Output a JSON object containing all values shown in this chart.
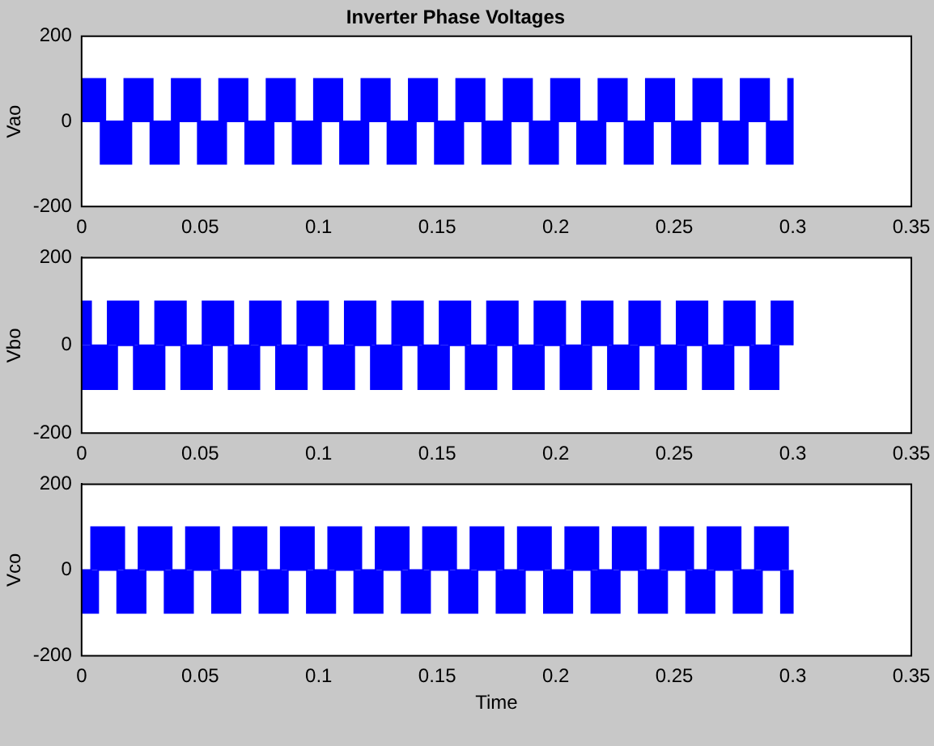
{
  "chart_data": [
    {
      "type": "area",
      "title": "Inverter Phase Voltages",
      "ylabel": "Vao",
      "xlim": [
        0,
        0.35
      ],
      "ylim": [
        -200,
        200
      ],
      "xticks": [
        0,
        0.05,
        0.1,
        0.15,
        0.2,
        0.25,
        0.3,
        0.35
      ],
      "yticks": [
        -200,
        0,
        200
      ],
      "series": [
        {
          "color": "#0000ff",
          "x": [
            0,
            0.01,
            0.01,
            0.018,
            0.018,
            0.03,
            0.03,
            0.038,
            0.038,
            0.05,
            0.05,
            0.058,
            0.058,
            0.07,
            0.07,
            0.078,
            0.078,
            0.09,
            0.09,
            0.098,
            0.098,
            0.11,
            0.11,
            0.118,
            0.118,
            0.13,
            0.13,
            0.138,
            0.138,
            0.15,
            0.15,
            0.158,
            0.158,
            0.17,
            0.17,
            0.178,
            0.178,
            0.19,
            0.19,
            0.198,
            0.198,
            0.21,
            0.21,
            0.218,
            0.218,
            0.23,
            0.23,
            0.238,
            0.238,
            0.25,
            0.25,
            0.258,
            0.258,
            0.27,
            0.27,
            0.278,
            0.278,
            0.29,
            0.29,
            0.298,
            0.298,
            0.3,
            0.3
          ],
          "values": [
            100,
            100,
            0,
            0,
            100,
            100,
            0,
            0,
            100,
            100,
            0,
            0,
            100,
            100,
            0,
            0,
            100,
            100,
            0,
            0,
            100,
            100,
            0,
            0,
            100,
            100,
            0,
            0,
            100,
            100,
            0,
            0,
            100,
            100,
            0,
            0,
            100,
            100,
            0,
            0,
            100,
            100,
            0,
            0,
            100,
            100,
            0,
            0,
            100,
            100,
            0,
            0,
            100,
            100,
            0,
            0,
            100,
            100,
            0,
            0,
            100,
            100,
            0
          ]
        },
        {
          "color": "#0000ff",
          "x": [
            0,
            0.008,
            0.008,
            0.021,
            0.021,
            0.029,
            0.029,
            0.041,
            0.041,
            0.049,
            0.049,
            0.061,
            0.061,
            0.069,
            0.069,
            0.081,
            0.081,
            0.089,
            0.089,
            0.101,
            0.101,
            0.109,
            0.109,
            0.121,
            0.121,
            0.129,
            0.129,
            0.141,
            0.141,
            0.149,
            0.149,
            0.161,
            0.161,
            0.169,
            0.169,
            0.181,
            0.181,
            0.189,
            0.189,
            0.201,
            0.201,
            0.209,
            0.209,
            0.221,
            0.221,
            0.229,
            0.229,
            0.241,
            0.241,
            0.249,
            0.249,
            0.261,
            0.261,
            0.269,
            0.269,
            0.281,
            0.281,
            0.289,
            0.289,
            0.3,
            0.3
          ],
          "values": [
            0,
            0,
            -100,
            -100,
            0,
            0,
            -100,
            -100,
            0,
            0,
            -100,
            -100,
            0,
            0,
            -100,
            -100,
            0,
            0,
            -100,
            -100,
            0,
            0,
            -100,
            -100,
            0,
            0,
            -100,
            -100,
            0,
            0,
            -100,
            -100,
            0,
            0,
            -100,
            -100,
            0,
            0,
            -100,
            -100,
            0,
            0,
            -100,
            -100,
            0,
            0,
            -100,
            -100,
            0,
            0,
            -100,
            -100,
            0,
            0,
            -100,
            -100,
            0,
            0,
            -100,
            -100,
            0
          ]
        }
      ]
    },
    {
      "type": "area",
      "ylabel": "Vbo",
      "xlim": [
        0,
        0.35
      ],
      "ylim": [
        -200,
        200
      ],
      "xticks": [
        0,
        0.05,
        0.1,
        0.15,
        0.2,
        0.25,
        0.3,
        0.35
      ],
      "yticks": [
        -200,
        0,
        200
      ],
      "series": [
        {
          "color": "#0000ff",
          "x": [
            0,
            0.004,
            0.004,
            0.011,
            0.011,
            0.024,
            0.024,
            0.031,
            0.031,
            0.044,
            0.044,
            0.051,
            0.051,
            0.064,
            0.064,
            0.071,
            0.071,
            0.084,
            0.084,
            0.091,
            0.091,
            0.104,
            0.104,
            0.111,
            0.111,
            0.124,
            0.124,
            0.131,
            0.131,
            0.144,
            0.144,
            0.151,
            0.151,
            0.164,
            0.164,
            0.171,
            0.171,
            0.184,
            0.184,
            0.191,
            0.191,
            0.204,
            0.204,
            0.211,
            0.211,
            0.224,
            0.224,
            0.231,
            0.231,
            0.244,
            0.244,
            0.251,
            0.251,
            0.264,
            0.264,
            0.271,
            0.271,
            0.284,
            0.284,
            0.291,
            0.291,
            0.3,
            0.3
          ],
          "values": [
            100,
            100,
            0,
            0,
            100,
            100,
            0,
            0,
            100,
            100,
            0,
            0,
            100,
            100,
            0,
            0,
            100,
            100,
            0,
            0,
            100,
            100,
            0,
            0,
            100,
            100,
            0,
            0,
            100,
            100,
            0,
            0,
            100,
            100,
            0,
            0,
            100,
            100,
            0,
            0,
            100,
            100,
            0,
            0,
            100,
            100,
            0,
            0,
            100,
            100,
            0,
            0,
            100,
            100,
            0,
            0,
            100,
            100,
            0,
            0,
            100,
            100,
            0
          ]
        },
        {
          "color": "#0000ff",
          "x": [
            0,
            0.015,
            0.015,
            0.022,
            0.022,
            0.035,
            0.035,
            0.042,
            0.042,
            0.055,
            0.055,
            0.062,
            0.062,
            0.075,
            0.075,
            0.082,
            0.082,
            0.095,
            0.095,
            0.102,
            0.102,
            0.115,
            0.115,
            0.122,
            0.122,
            0.135,
            0.135,
            0.142,
            0.142,
            0.155,
            0.155,
            0.162,
            0.162,
            0.175,
            0.175,
            0.182,
            0.182,
            0.195,
            0.195,
            0.202,
            0.202,
            0.215,
            0.215,
            0.222,
            0.222,
            0.235,
            0.235,
            0.242,
            0.242,
            0.255,
            0.255,
            0.262,
            0.262,
            0.275,
            0.275,
            0.282,
            0.282,
            0.294,
            0.294
          ],
          "values": [
            -100,
            -100,
            0,
            0,
            -100,
            -100,
            0,
            0,
            -100,
            -100,
            0,
            0,
            -100,
            -100,
            0,
            0,
            -100,
            -100,
            0,
            0,
            -100,
            -100,
            0,
            0,
            -100,
            -100,
            0,
            0,
            -100,
            -100,
            0,
            0,
            -100,
            -100,
            0,
            0,
            -100,
            -100,
            0,
            0,
            -100,
            -100,
            0,
            0,
            -100,
            -100,
            0,
            0,
            -100,
            -100,
            0,
            0,
            -100,
            -100,
            0,
            0,
            -100,
            -100,
            0
          ]
        }
      ]
    },
    {
      "type": "area",
      "ylabel": "Vco",
      "xlabel": "Time",
      "xlim": [
        0,
        0.35
      ],
      "ylim": [
        -200,
        200
      ],
      "xticks": [
        0,
        0.05,
        0.1,
        0.15,
        0.2,
        0.25,
        0.3,
        0.35
      ],
      "yticks": [
        -200,
        0,
        200
      ],
      "series": [
        {
          "color": "#0000ff",
          "x": [
            0,
            0.004,
            0.004,
            0.018,
            0.018,
            0.024,
            0.024,
            0.038,
            0.038,
            0.044,
            0.044,
            0.058,
            0.058,
            0.064,
            0.064,
            0.078,
            0.078,
            0.084,
            0.084,
            0.098,
            0.098,
            0.104,
            0.104,
            0.118,
            0.118,
            0.124,
            0.124,
            0.138,
            0.138,
            0.144,
            0.144,
            0.158,
            0.158,
            0.164,
            0.164,
            0.178,
            0.178,
            0.184,
            0.184,
            0.198,
            0.198,
            0.204,
            0.204,
            0.218,
            0.218,
            0.224,
            0.224,
            0.238,
            0.238,
            0.244,
            0.244,
            0.258,
            0.258,
            0.264,
            0.264,
            0.278,
            0.278,
            0.284,
            0.284,
            0.298,
            0.298
          ],
          "values": [
            0,
            0,
            100,
            100,
            0,
            0,
            100,
            100,
            0,
            0,
            100,
            100,
            0,
            0,
            100,
            100,
            0,
            0,
            100,
            100,
            0,
            0,
            100,
            100,
            0,
            0,
            100,
            100,
            0,
            0,
            100,
            100,
            0,
            0,
            100,
            100,
            0,
            0,
            100,
            100,
            0,
            0,
            100,
            100,
            0,
            0,
            100,
            100,
            0,
            0,
            100,
            100,
            0,
            0,
            100,
            100,
            0,
            0,
            100,
            100,
            0
          ]
        },
        {
          "color": "#0000ff",
          "x": [
            0,
            0.007,
            0.007,
            0.015,
            0.015,
            0.027,
            0.027,
            0.035,
            0.035,
            0.047,
            0.047,
            0.055,
            0.055,
            0.067,
            0.067,
            0.075,
            0.075,
            0.087,
            0.087,
            0.095,
            0.095,
            0.107,
            0.107,
            0.115,
            0.115,
            0.127,
            0.127,
            0.135,
            0.135,
            0.147,
            0.147,
            0.155,
            0.155,
            0.167,
            0.167,
            0.175,
            0.175,
            0.187,
            0.187,
            0.195,
            0.195,
            0.207,
            0.207,
            0.215,
            0.215,
            0.227,
            0.227,
            0.235,
            0.235,
            0.247,
            0.247,
            0.255,
            0.255,
            0.267,
            0.267,
            0.275,
            0.275,
            0.287,
            0.287,
            0.295,
            0.295,
            0.3,
            0.3
          ],
          "values": [
            -100,
            -100,
            0,
            0,
            -100,
            -100,
            0,
            0,
            -100,
            -100,
            0,
            0,
            -100,
            -100,
            0,
            0,
            -100,
            -100,
            0,
            0,
            -100,
            -100,
            0,
            0,
            -100,
            -100,
            0,
            0,
            -100,
            -100,
            0,
            0,
            -100,
            -100,
            0,
            0,
            -100,
            -100,
            0,
            0,
            -100,
            -100,
            0,
            0,
            -100,
            -100,
            0,
            0,
            -100,
            -100,
            0,
            0,
            -100,
            -100,
            0,
            0,
            -100,
            -100,
            0,
            0,
            -100,
            -100,
            0
          ]
        }
      ]
    }
  ]
}
